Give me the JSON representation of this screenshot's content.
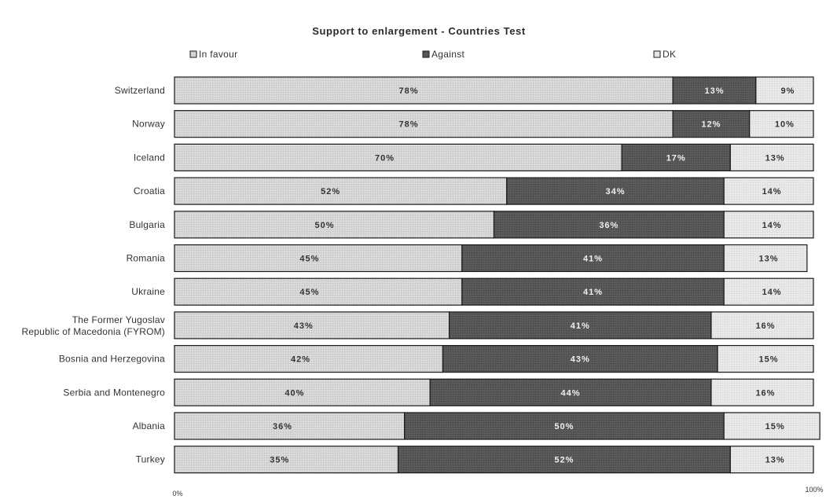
{
  "chart_data": {
    "type": "bar",
    "orientation": "horizontal",
    "stacked": true,
    "percent_stacked": true,
    "title": "Support to enlargement - Countries Test",
    "categories": [
      "Switzerland",
      "Norway",
      "Iceland",
      "Croatia",
      "Bulgaria",
      "Romania",
      "Ukraine",
      "The Former Yugoslav Republic of Macedonia (FYROM)",
      "Bosnia and Herzegovina",
      "Serbia and Montenegro",
      "Albania",
      "Turkey"
    ],
    "series": [
      {
        "name": "In favour",
        "values": [
          78,
          78,
          70,
          52,
          50,
          45,
          45,
          43,
          42,
          40,
          36,
          35
        ]
      },
      {
        "name": "Against",
        "values": [
          13,
          12,
          17,
          34,
          36,
          41,
          41,
          41,
          43,
          44,
          50,
          52
        ]
      },
      {
        "name": "DK",
        "values": [
          9,
          10,
          13,
          14,
          14,
          13,
          14,
          16,
          15,
          16,
          15,
          13
        ]
      }
    ],
    "value_format": "percent",
    "xlim": [
      0,
      100
    ],
    "x_tick_labels": [
      "0%",
      "100%"
    ],
    "legend_position": "top",
    "grid": false,
    "colors": {
      "In favour": "#d3d3d3",
      "Against": "#555555",
      "DK": "#e6e6e6"
    },
    "label_colors": {
      "In favour": "#333333",
      "Against": "#f0f0f0",
      "DK": "#333333"
    },
    "border_color": "#1a1a1a"
  }
}
